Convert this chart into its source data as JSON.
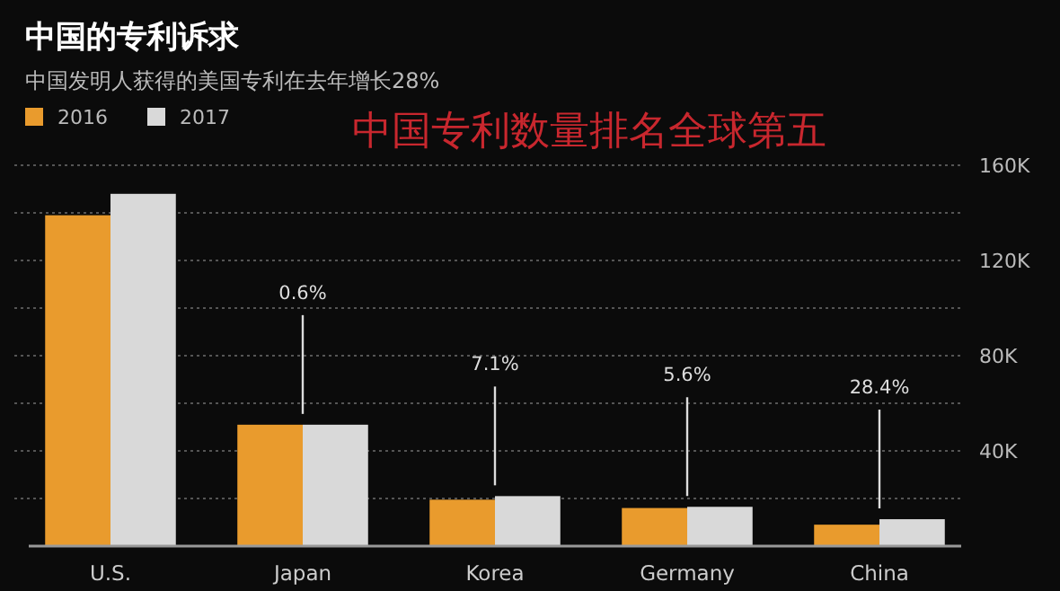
{
  "chart_data": {
    "type": "bar",
    "title": "中国的专利诉求",
    "subtitle": "中国发明人获得的美国专利在去年增长28%",
    "categories": [
      "U.S.",
      "Japan",
      "Korea",
      "Germany",
      "China"
    ],
    "series": [
      {
        "name": "2016",
        "color": "#e99b2d",
        "values": [
          139000,
          51000,
          19500,
          16000,
          9000
        ]
      },
      {
        "name": "2017",
        "color": "#d9d9d9",
        "values": [
          148000,
          51000,
          21000,
          16500,
          11300
        ]
      }
    ],
    "ylim": [
      0,
      160000
    ],
    "yticks": [
      {
        "value": 0,
        "label": null
      },
      {
        "value": 20000,
        "label": null
      },
      {
        "value": 40000,
        "label": "40K"
      },
      {
        "value": 60000,
        "label": null
      },
      {
        "value": 80000,
        "label": "80K"
      },
      {
        "value": 100000,
        "label": null
      },
      {
        "value": 120000,
        "label": "120K"
      },
      {
        "value": 140000,
        "label": null
      },
      {
        "value": 160000,
        "label": "160K"
      }
    ],
    "grid": "y",
    "legend": "top left",
    "annotations": [
      "中国专利数量排名全球第五",
      "0.6%",
      "7.1%",
      "5.6%",
      "28.4%"
    ]
  }
}
